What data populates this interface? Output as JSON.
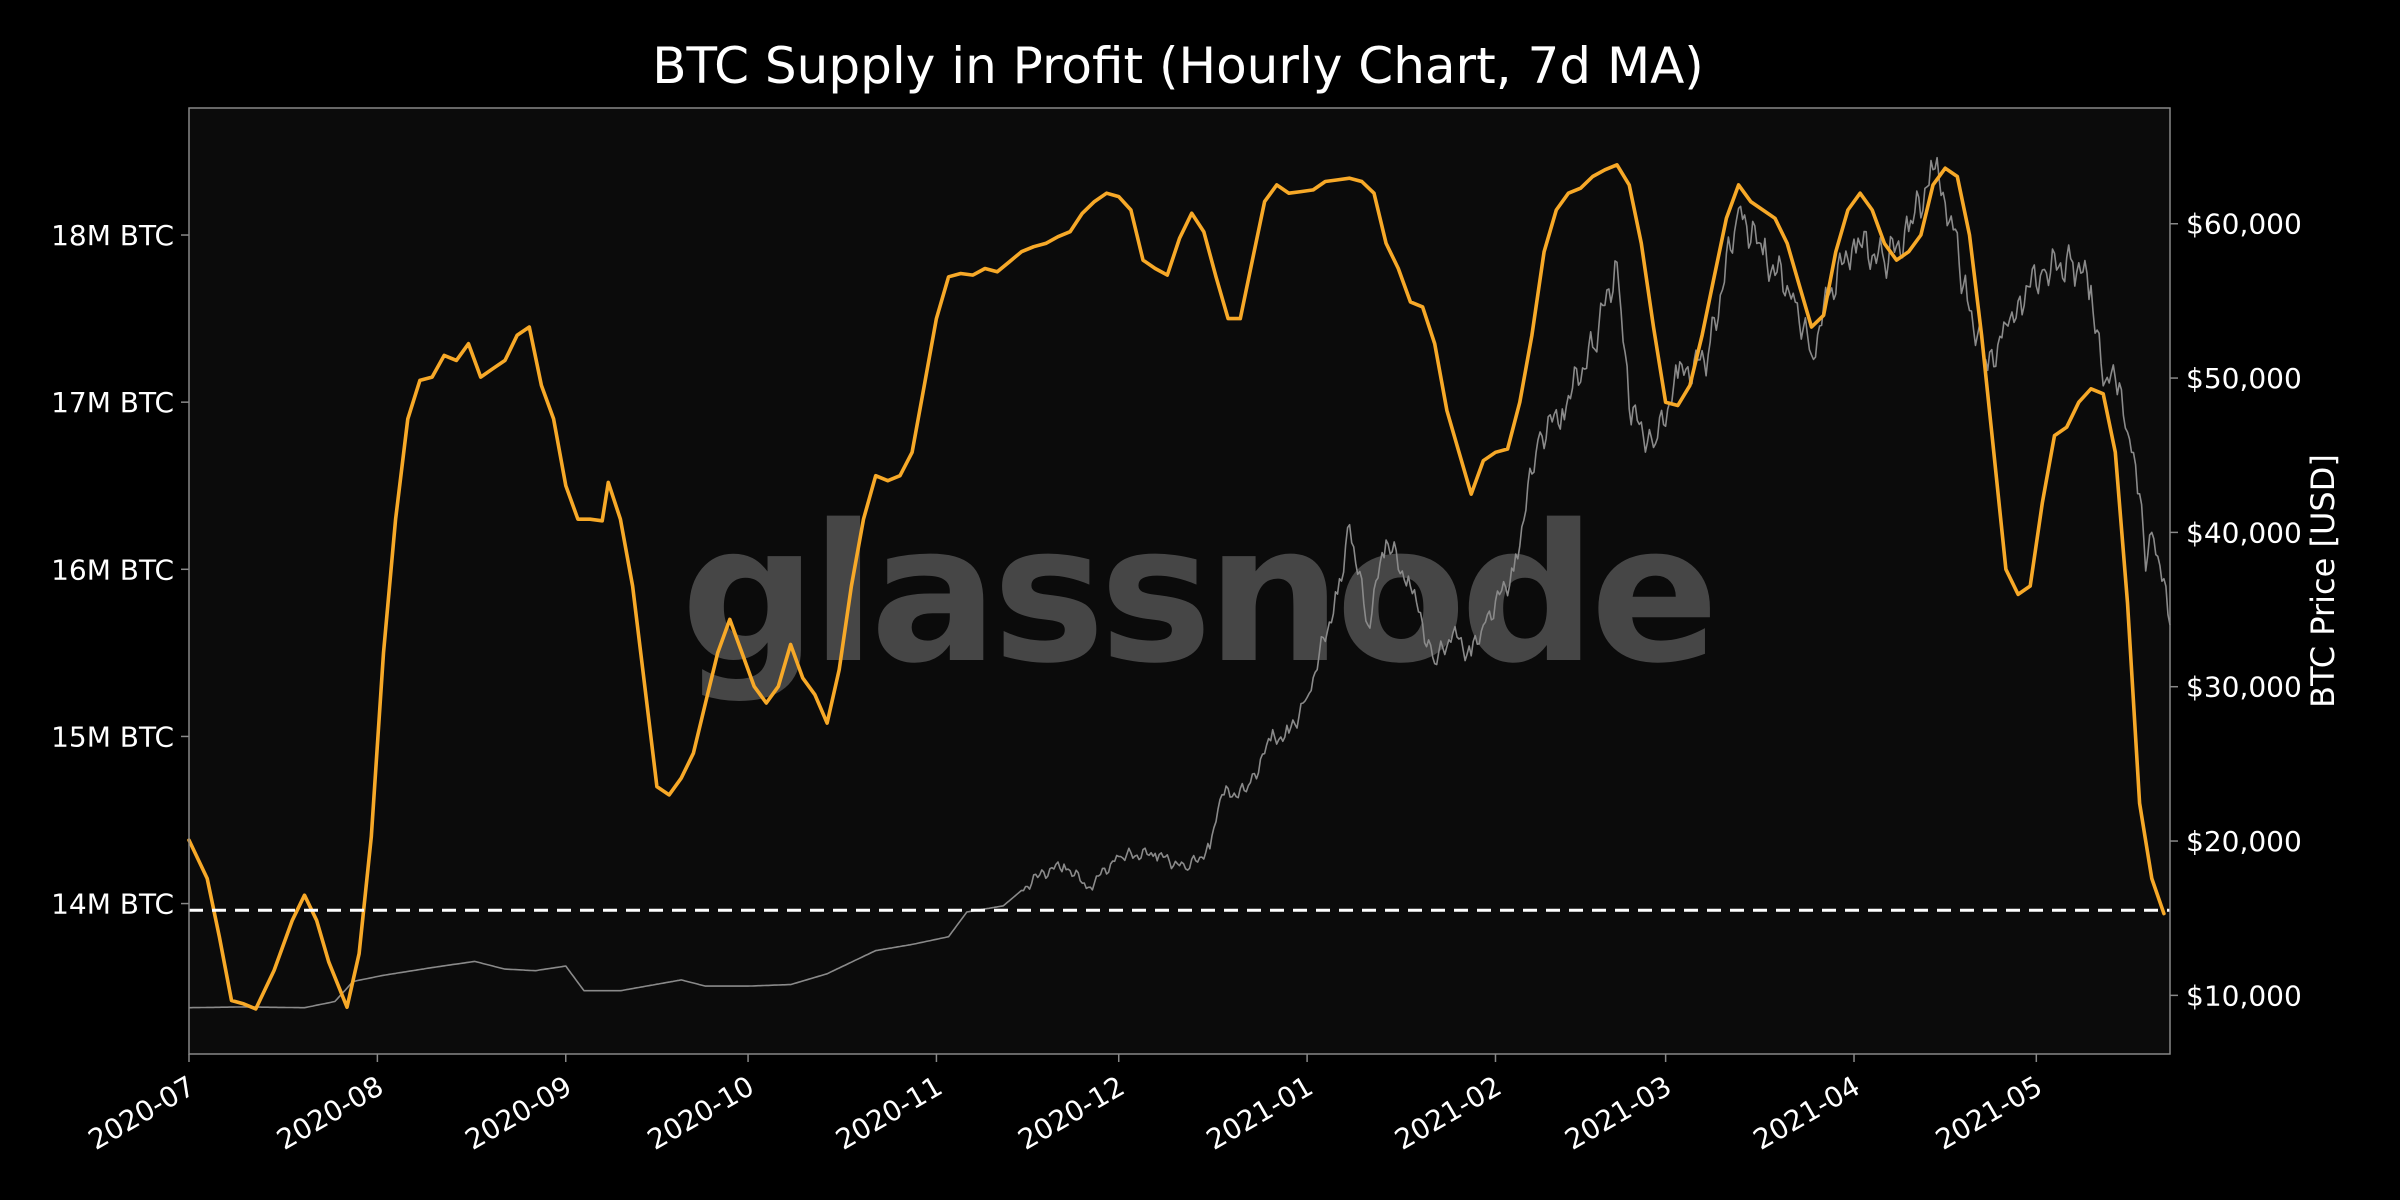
{
  "chart_data": {
    "type": "line",
    "title": "BTC Supply in Profit (Hourly Chart, 7d MA)",
    "watermark": "glassnode",
    "x_tick_labels": [
      "2020-07",
      "2020-08",
      "2020-09",
      "2020-10",
      "2020-11",
      "2020-12",
      "2021-01",
      "2021-02",
      "2021-03",
      "2021-04",
      "2021-05"
    ],
    "x_range": [
      "2020-07-01",
      "2021-05-23"
    ],
    "y_left": {
      "label": "",
      "ticks": [
        14000000,
        15000000,
        16000000,
        17000000,
        18000000
      ],
      "tick_labels": [
        "14M BTC",
        "15M BTC",
        "16M BTC",
        "17M BTC",
        "18M BTC"
      ],
      "ylim": [
        13100000,
        18760000
      ]
    },
    "y_right": {
      "label": "BTC Price [USD]",
      "ticks": [
        10000,
        20000,
        30000,
        40000,
        50000,
        60000
      ],
      "tick_labels": [
        "$10,000",
        "$20,000",
        "$30,000",
        "$40,000",
        "$50,000",
        "$60,000"
      ],
      "ylim": [
        6200,
        67500
      ]
    },
    "reference_line": {
      "axis": "left",
      "value": 13960000,
      "style": "dashed",
      "color": "#ffffff"
    },
    "grid": false,
    "colors": {
      "background": "#000000",
      "plot_background": "#0b0b0b",
      "supply_line": "#f7a928",
      "price_line": "#8a8a8a",
      "frame": "#888888"
    },
    "series": [
      {
        "axis": "left",
        "points": [
          [
            "2020-07-01",
            14380000
          ],
          [
            "2020-07-04",
            14150000
          ],
          [
            "2020-07-06",
            13800000
          ],
          [
            "2020-07-08",
            13420000
          ],
          [
            "2020-07-10",
            13400000
          ],
          [
            "2020-07-12",
            13370000
          ],
          [
            "2020-07-15",
            13600000
          ],
          [
            "2020-07-18",
            13900000
          ],
          [
            "2020-07-20",
            14050000
          ],
          [
            "2020-07-22",
            13900000
          ],
          [
            "2020-07-24",
            13650000
          ],
          [
            "2020-07-27",
            13380000
          ],
          [
            "2020-07-29",
            13700000
          ],
          [
            "2020-07-31",
            14400000
          ],
          [
            "2020-08-02",
            15500000
          ],
          [
            "2020-08-04",
            16300000
          ],
          [
            "2020-08-06",
            16900000
          ],
          [
            "2020-08-08",
            17130000
          ],
          [
            "2020-08-10",
            17150000
          ],
          [
            "2020-08-12",
            17280000
          ],
          [
            "2020-08-14",
            17250000
          ],
          [
            "2020-08-16",
            17350000
          ],
          [
            "2020-08-18",
            17150000
          ],
          [
            "2020-08-20",
            17200000
          ],
          [
            "2020-08-22",
            17250000
          ],
          [
            "2020-08-24",
            17400000
          ],
          [
            "2020-08-26",
            17450000
          ],
          [
            "2020-08-28",
            17100000
          ],
          [
            "2020-08-30",
            16900000
          ],
          [
            "2020-09-01",
            16500000
          ],
          [
            "2020-09-03",
            16300000
          ],
          [
            "2020-09-05",
            16300000
          ],
          [
            "2020-09-07",
            16290000
          ],
          [
            "2020-09-08",
            16520000
          ],
          [
            "2020-09-10",
            16300000
          ],
          [
            "2020-09-12",
            15900000
          ],
          [
            "2020-09-14",
            15300000
          ],
          [
            "2020-09-16",
            14700000
          ],
          [
            "2020-09-18",
            14650000
          ],
          [
            "2020-09-20",
            14750000
          ],
          [
            "2020-09-22",
            14900000
          ],
          [
            "2020-09-24",
            15200000
          ],
          [
            "2020-09-26",
            15500000
          ],
          [
            "2020-09-28",
            15700000
          ],
          [
            "2020-09-30",
            15500000
          ],
          [
            "2020-10-02",
            15300000
          ],
          [
            "2020-10-04",
            15200000
          ],
          [
            "2020-10-06",
            15300000
          ],
          [
            "2020-10-08",
            15550000
          ],
          [
            "2020-10-10",
            15350000
          ],
          [
            "2020-10-12",
            15250000
          ],
          [
            "2020-10-14",
            15080000
          ],
          [
            "2020-10-16",
            15400000
          ],
          [
            "2020-10-18",
            15900000
          ],
          [
            "2020-10-20",
            16300000
          ],
          [
            "2020-10-22",
            16560000
          ],
          [
            "2020-10-24",
            16530000
          ],
          [
            "2020-10-26",
            16560000
          ],
          [
            "2020-10-28",
            16700000
          ],
          [
            "2020-10-30",
            17100000
          ],
          [
            "2020-11-01",
            17500000
          ],
          [
            "2020-11-03",
            17750000
          ],
          [
            "2020-11-05",
            17770000
          ],
          [
            "2020-11-07",
            17760000
          ],
          [
            "2020-11-09",
            17800000
          ],
          [
            "2020-11-11",
            17780000
          ],
          [
            "2020-11-13",
            17840000
          ],
          [
            "2020-11-15",
            17900000
          ],
          [
            "2020-11-17",
            17930000
          ],
          [
            "2020-11-19",
            17950000
          ],
          [
            "2020-11-21",
            17990000
          ],
          [
            "2020-11-23",
            18020000
          ],
          [
            "2020-11-25",
            18130000
          ],
          [
            "2020-11-27",
            18200000
          ],
          [
            "2020-11-29",
            18250000
          ],
          [
            "2020-12-01",
            18230000
          ],
          [
            "2020-12-03",
            18150000
          ],
          [
            "2020-12-05",
            17850000
          ],
          [
            "2020-12-07",
            17800000
          ],
          [
            "2020-12-09",
            17760000
          ],
          [
            "2020-12-11",
            17980000
          ],
          [
            "2020-12-13",
            18130000
          ],
          [
            "2020-12-15",
            18020000
          ],
          [
            "2020-12-17",
            17750000
          ],
          [
            "2020-12-19",
            17500000
          ],
          [
            "2020-12-21",
            17500000
          ],
          [
            "2020-12-23",
            17850000
          ],
          [
            "2020-12-25",
            18200000
          ],
          [
            "2020-12-27",
            18300000
          ],
          [
            "2020-12-29",
            18250000
          ],
          [
            "2020-12-31",
            18260000
          ],
          [
            "2021-01-02",
            18270000
          ],
          [
            "2021-01-04",
            18320000
          ],
          [
            "2021-01-06",
            18330000
          ],
          [
            "2021-01-08",
            18340000
          ],
          [
            "2021-01-10",
            18320000
          ],
          [
            "2021-01-12",
            18250000
          ],
          [
            "2021-01-14",
            17950000
          ],
          [
            "2021-01-16",
            17800000
          ],
          [
            "2021-01-18",
            17600000
          ],
          [
            "2021-01-20",
            17570000
          ],
          [
            "2021-01-22",
            17350000
          ],
          [
            "2021-01-24",
            16950000
          ],
          [
            "2021-01-26",
            16700000
          ],
          [
            "2021-01-28",
            16450000
          ],
          [
            "2021-01-30",
            16650000
          ],
          [
            "2021-02-01",
            16700000
          ],
          [
            "2021-02-03",
            16720000
          ],
          [
            "2021-02-05",
            17000000
          ],
          [
            "2021-02-07",
            17400000
          ],
          [
            "2021-02-09",
            17900000
          ],
          [
            "2021-02-11",
            18150000
          ],
          [
            "2021-02-13",
            18250000
          ],
          [
            "2021-02-15",
            18280000
          ],
          [
            "2021-02-17",
            18350000
          ],
          [
            "2021-02-19",
            18390000
          ],
          [
            "2021-02-21",
            18420000
          ],
          [
            "2021-02-23",
            18300000
          ],
          [
            "2021-02-25",
            17950000
          ],
          [
            "2021-02-27",
            17450000
          ],
          [
            "2021-03-01",
            17000000
          ],
          [
            "2021-03-03",
            16980000
          ],
          [
            "2021-03-05",
            17100000
          ],
          [
            "2021-03-07",
            17400000
          ],
          [
            "2021-03-09",
            17750000
          ],
          [
            "2021-03-11",
            18100000
          ],
          [
            "2021-03-13",
            18300000
          ],
          [
            "2021-03-15",
            18200000
          ],
          [
            "2021-03-17",
            18150000
          ],
          [
            "2021-03-19",
            18100000
          ],
          [
            "2021-03-21",
            17950000
          ],
          [
            "2021-03-23",
            17700000
          ],
          [
            "2021-03-25",
            17450000
          ],
          [
            "2021-03-27",
            17520000
          ],
          [
            "2021-03-29",
            17900000
          ],
          [
            "2021-03-31",
            18150000
          ],
          [
            "2021-04-02",
            18250000
          ],
          [
            "2021-04-04",
            18150000
          ],
          [
            "2021-04-06",
            17950000
          ],
          [
            "2021-04-08",
            17850000
          ],
          [
            "2021-04-10",
            17900000
          ],
          [
            "2021-04-12",
            18000000
          ],
          [
            "2021-04-14",
            18300000
          ],
          [
            "2021-04-16",
            18400000
          ],
          [
            "2021-04-18",
            18350000
          ],
          [
            "2021-04-20",
            18000000
          ],
          [
            "2021-04-22",
            17400000
          ],
          [
            "2021-04-24",
            16700000
          ],
          [
            "2021-04-26",
            16000000
          ],
          [
            "2021-04-28",
            15850000
          ],
          [
            "2021-04-30",
            15900000
          ],
          [
            "2021-05-02",
            16400000
          ],
          [
            "2021-05-04",
            16800000
          ],
          [
            "2021-05-06",
            16850000
          ],
          [
            "2021-05-08",
            17000000
          ],
          [
            "2021-05-10",
            17080000
          ],
          [
            "2021-05-12",
            17050000
          ],
          [
            "2021-05-14",
            16700000
          ],
          [
            "2021-05-16",
            15800000
          ],
          [
            "2021-05-18",
            14600000
          ],
          [
            "2021-05-20",
            14150000
          ],
          [
            "2021-05-22",
            13940000
          ]
        ]
      },
      {
        "axis": "right",
        "points": [
          [
            "2020-07-01",
            9200
          ],
          [
            "2020-07-10",
            9250
          ],
          [
            "2020-07-20",
            9200
          ],
          [
            "2020-07-25",
            9600
          ],
          [
            "2020-07-28",
            10900
          ],
          [
            "2020-08-02",
            11300
          ],
          [
            "2020-08-10",
            11800
          ],
          [
            "2020-08-17",
            12200
          ],
          [
            "2020-08-22",
            11700
          ],
          [
            "2020-08-27",
            11600
          ],
          [
            "2020-09-01",
            11900
          ],
          [
            "2020-09-04",
            10300
          ],
          [
            "2020-09-10",
            10300
          ],
          [
            "2020-09-20",
            11000
          ],
          [
            "2020-09-24",
            10600
          ],
          [
            "2020-10-01",
            10600
          ],
          [
            "2020-10-08",
            10700
          ],
          [
            "2020-10-14",
            11400
          ],
          [
            "2020-10-22",
            12900
          ],
          [
            "2020-10-28",
            13300
          ],
          [
            "2020-11-03",
            13800
          ],
          [
            "2020-11-06",
            15400
          ],
          [
            "2020-11-12",
            15800
          ],
          [
            "2020-11-18",
            17800
          ],
          [
            "2020-11-22",
            18500
          ],
          [
            "2020-11-26",
            17000
          ],
          [
            "2020-12-01",
            19000
          ],
          [
            "2020-12-07",
            19200
          ],
          [
            "2020-12-12",
            18200
          ],
          [
            "2020-12-16",
            19500
          ],
          [
            "2020-12-18",
            23000
          ],
          [
            "2020-12-22",
            23200
          ],
          [
            "2020-12-26",
            26500
          ],
          [
            "2020-12-29",
            27000
          ],
          [
            "2021-01-01",
            29300
          ],
          [
            "2021-01-06",
            36000
          ],
          [
            "2021-01-08",
            40500
          ],
          [
            "2021-01-11",
            34000
          ],
          [
            "2021-01-14",
            39500
          ],
          [
            "2021-01-18",
            36500
          ],
          [
            "2021-01-22",
            31500
          ],
          [
            "2021-01-25",
            33500
          ],
          [
            "2021-01-28",
            32000
          ],
          [
            "2021-01-30",
            34000
          ],
          [
            "2021-02-04",
            37500
          ],
          [
            "2021-02-08",
            46000
          ],
          [
            "2021-02-12",
            48000
          ],
          [
            "2021-02-17",
            52000
          ],
          [
            "2021-02-21",
            57500
          ],
          [
            "2021-02-23",
            48000
          ],
          [
            "2021-02-27",
            45500
          ],
          [
            "2021-03-03",
            50000
          ],
          [
            "2021-03-08",
            51500
          ],
          [
            "2021-03-13",
            61000
          ],
          [
            "2021-03-17",
            58000
          ],
          [
            "2021-03-22",
            55500
          ],
          [
            "2021-03-25",
            51500
          ],
          [
            "2021-03-28",
            55500
          ],
          [
            "2021-04-01",
            59000
          ],
          [
            "2021-04-06",
            57500
          ],
          [
            "2021-04-10",
            59500
          ],
          [
            "2021-04-14",
            63500
          ],
          [
            "2021-04-17",
            60500
          ],
          [
            "2021-04-19",
            56000
          ],
          [
            "2021-04-23",
            50500
          ],
          [
            "2021-04-26",
            53500
          ],
          [
            "2021-04-28",
            55000
          ],
          [
            "2021-05-02",
            57000
          ],
          [
            "2021-05-07",
            57500
          ],
          [
            "2021-05-10",
            56000
          ],
          [
            "2021-05-12",
            49500
          ],
          [
            "2021-05-14",
            50000
          ],
          [
            "2021-05-16",
            46500
          ],
          [
            "2021-05-18",
            42500
          ],
          [
            "2021-05-19",
            37500
          ],
          [
            "2021-05-20",
            40000
          ],
          [
            "2021-05-22",
            37000
          ],
          [
            "2021-05-23",
            34000
          ]
        ]
      }
    ]
  }
}
